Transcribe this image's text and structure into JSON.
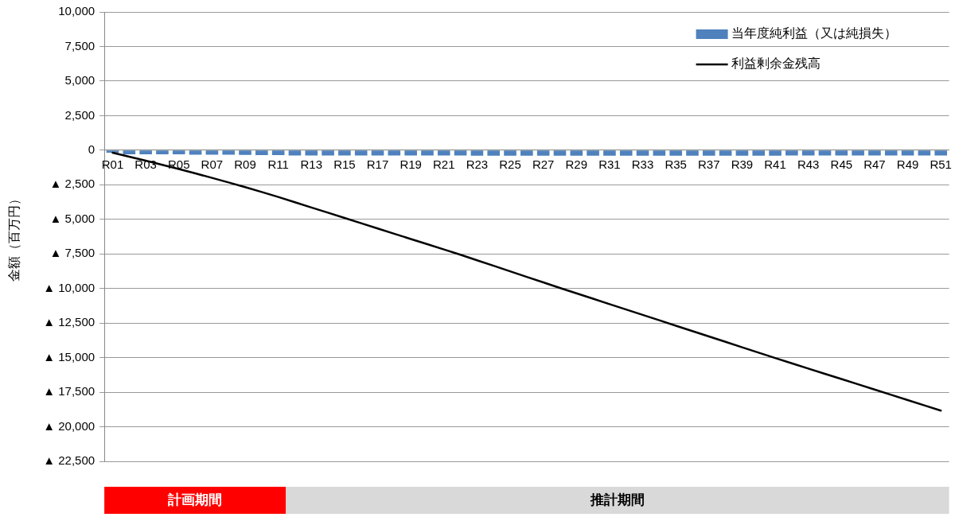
{
  "chart_data": {
    "type": "bar",
    "ylabel": "金額（百万円）",
    "categories": [
      "R01",
      null,
      "R03",
      null,
      "R05",
      null,
      "R07",
      null,
      "R09",
      null,
      "R11",
      null,
      "R13",
      null,
      "R15",
      null,
      "R17",
      null,
      "R19",
      null,
      "R21",
      null,
      "R23",
      null,
      "R25",
      null,
      "R27",
      null,
      "R29",
      null,
      "R31",
      null,
      "R33",
      null,
      "R35",
      null,
      "R37",
      null,
      "R39",
      null,
      "R41",
      null,
      "R43",
      null,
      "R45",
      null,
      "R47",
      null,
      "R49",
      null,
      "R51"
    ],
    "series": [
      {
        "name": "当年度純利益（又は純損失）",
        "color": "#4f81bd",
        "values": [
          -180,
          -290,
          -290,
          -300,
          -300,
          -320,
          -320,
          -330,
          -340,
          -350,
          -360,
          -380,
          -380,
          -380,
          -380,
          -380,
          -380,
          -380,
          -380,
          -380,
          -380,
          -380,
          -400,
          -400,
          -400,
          -400,
          -400,
          -400,
          -390,
          -390,
          -390,
          -390,
          -390,
          -390,
          -390,
          -390,
          -390,
          -390,
          -390,
          -390,
          -390,
          -380,
          -380,
          -380,
          -380,
          -380,
          -380,
          -380,
          -380,
          -380,
          -380
        ]
      },
      {
        "name": "利益剰余金残高",
        "type": "line",
        "color": "#000000",
        "values": [
          -180,
          -470,
          -760,
          -1060,
          -1360,
          -1680,
          -2000,
          -2330,
          -2670,
          -3020,
          -3380,
          -3760,
          -4140,
          -4520,
          -4900,
          -5280,
          -5660,
          -6040,
          -6420,
          -6800,
          -7180,
          -7560,
          -7960,
          -8360,
          -8760,
          -9160,
          -9560,
          -9960,
          -10350,
          -10740,
          -11130,
          -11520,
          -11910,
          -12300,
          -12690,
          -13080,
          -13470,
          -13860,
          -14250,
          -14640,
          -15030,
          -15410,
          -15790,
          -16170,
          -16550,
          -16930,
          -17310,
          -17690,
          -18070,
          -18450,
          -18830
        ]
      }
    ],
    "ylim": [
      -22500,
      10000
    ],
    "yticks": [
      {
        "value": 10000,
        "label": "10,000"
      },
      {
        "value": 7500,
        "label": "7,500"
      },
      {
        "value": 5000,
        "label": "5,000"
      },
      {
        "value": 2500,
        "label": "2,500"
      },
      0,
      {
        "value": -2500,
        "label": "▲ 2,500"
      },
      {
        "value": -5000,
        "label": "▲ 5,000"
      },
      {
        "value": -7500,
        "label": "▲ 7,500"
      },
      {
        "value": -10000,
        "label": "▲ 10,000"
      },
      {
        "value": -12500,
        "label": "▲ 12,500"
      },
      {
        "value": -15000,
        "label": "▲ 15,000"
      },
      {
        "value": -17500,
        "label": "▲ 17,500"
      },
      {
        "value": -20000,
        "label": "▲ 20,000"
      },
      {
        "value": -22500,
        "label": "▲ 22,500"
      }
    ],
    "grid": "y",
    "legend": "top right",
    "marker": "none",
    "line_style": "solid",
    "annotations": [
      "計画期間",
      "推計期間"
    ]
  }
}
